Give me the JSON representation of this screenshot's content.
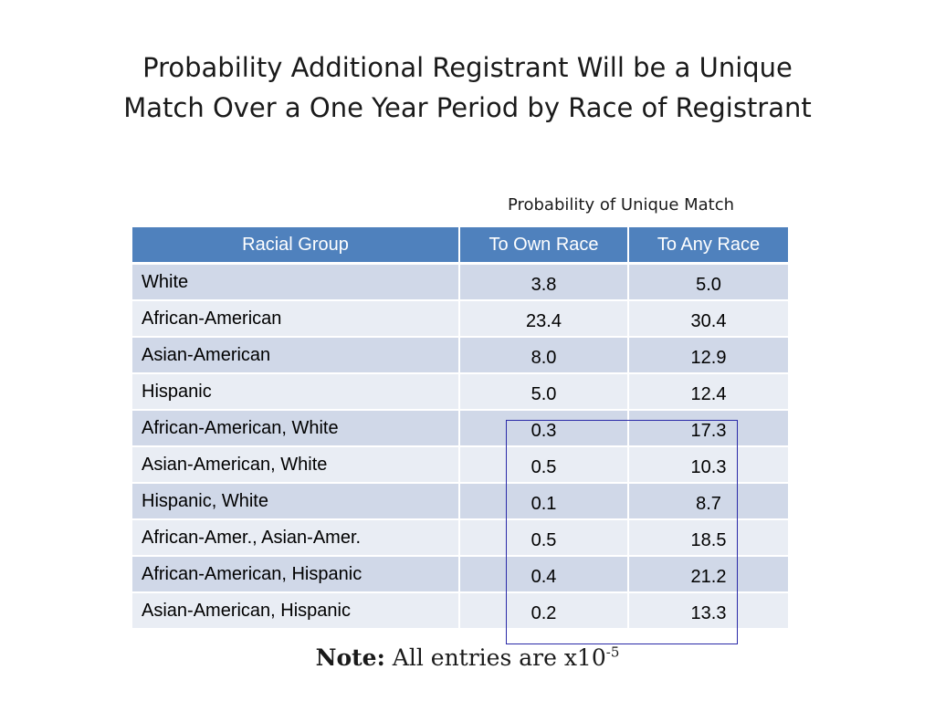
{
  "title": {
    "line1": "Probability Additional Registrant Will be a Unique",
    "line2": "Match Over a One Year Period by Race of Registrant"
  },
  "subheading": "Probability of Unique Match",
  "table": {
    "headers": {
      "group": "Racial Group",
      "own": "To Own Race",
      "any": "To Any Race"
    },
    "rows": [
      {
        "group": "White",
        "own": "3.8",
        "any": "5.0"
      },
      {
        "group": "African-American",
        "own": "23.4",
        "any": "30.4"
      },
      {
        "group": "Asian-American",
        "own": "8.0",
        "any": "12.9"
      },
      {
        "group": "Hispanic",
        "own": "5.0",
        "any": "12.4"
      },
      {
        "group": "African-American, White",
        "own": "0.3",
        "any": "17.3"
      },
      {
        "group": "Asian-American, White",
        "own": "0.5",
        "any": "10.3"
      },
      {
        "group": "Hispanic, White",
        "own": "0.1",
        "any": "8.7"
      },
      {
        "group": "African-Amer., Asian-Amer.",
        "own": "0.5",
        "any": "18.5"
      },
      {
        "group": "African-American, Hispanic",
        "own": "0.4",
        "any": "21.2"
      },
      {
        "group": "Asian-American, Hispanic",
        "own": "0.2",
        "any": "13.3"
      }
    ]
  },
  "note": {
    "label": "Note:",
    "text": "All entries are x10",
    "exponent": "-5"
  },
  "colors": {
    "header_bg": "#4f81bd",
    "row_odd_bg": "#d0d8e8",
    "row_even_bg": "#e9edf4",
    "highlight_border": "#2a2aa8"
  }
}
